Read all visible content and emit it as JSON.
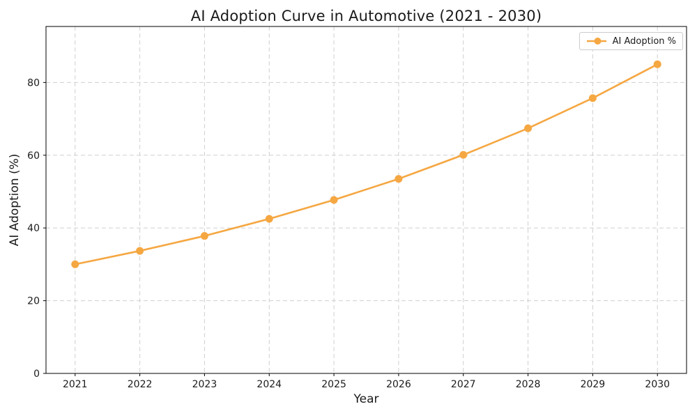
{
  "chart_data": {
    "type": "line",
    "title": "AI Adoption Curve in Automotive (2021 - 2030)",
    "xlabel": "Year",
    "ylabel": "AI Adoption (%)",
    "categories": [
      "2021",
      "2022",
      "2023",
      "2024",
      "2025",
      "2026",
      "2027",
      "2028",
      "2029",
      "2030"
    ],
    "series": [
      {
        "name": "AI Adoption %",
        "values": [
          30.0,
          33.7,
          37.8,
          42.5,
          47.7,
          53.5,
          60.1,
          67.4,
          75.7,
          85.0
        ],
        "color": "#F5A742",
        "marker": "circle",
        "line_style": "solid"
      }
    ],
    "ylim": [
      0,
      95.4
    ],
    "yticks": [
      0,
      20,
      40,
      60,
      80
    ],
    "grid": true,
    "grid_style": "dashed",
    "legend": {
      "label": "AI Adoption %",
      "position": "upper right"
    }
  },
  "colors": {
    "series": "#F5A742",
    "grid": "#cfcfcf",
    "spine": "#000000",
    "text": "#1a1a1a",
    "legend_border": "#cccccc",
    "background": "#ffffff"
  }
}
